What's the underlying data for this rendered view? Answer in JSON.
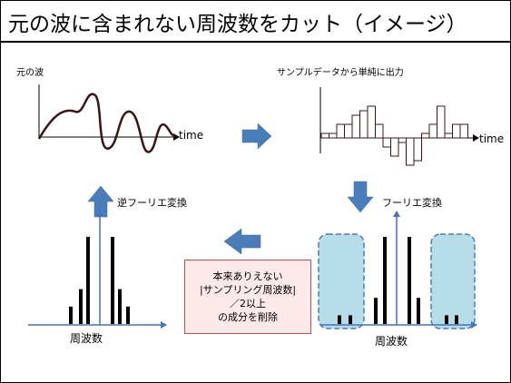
{
  "title": "元の波に含まれない周波数をカット（イメージ）",
  "labels": {
    "original_wave": "元の波",
    "sample_output": "サンプルデータから単純に出力",
    "inverse_fourier": "逆フーリエ変換",
    "fourier": "フーリエ変換",
    "time_left": "time",
    "time_right": "time",
    "freq_left": "周波数",
    "freq_right": "周波数"
  },
  "note_lines": [
    "本来ありえない",
    "|サンプリング周波数|",
    "／2以上",
    "の成分を削除"
  ],
  "colors": {
    "wave": "#3b1416",
    "arrow": "#4a7ebb",
    "axis": "#4472c4",
    "highlight_fill": "#b7dde8",
    "highlight_border": "#4a7ebb",
    "note_border": "#c0504d",
    "note_fill": "#fde9e7"
  },
  "spectrum_left": [
    2,
    4,
    10,
    10,
    4,
    2
  ],
  "spectrum_right": [
    1,
    1,
    3,
    10,
    10,
    3,
    1,
    1
  ],
  "samples": [
    0.5,
    0.5,
    1.5,
    1.5,
    2.5,
    3,
    3.5,
    1.5,
    -1,
    -2,
    -0.5,
    -3,
    -2.5,
    0.5,
    1.5,
    3.5,
    0.5,
    1.5,
    1.5
  ]
}
